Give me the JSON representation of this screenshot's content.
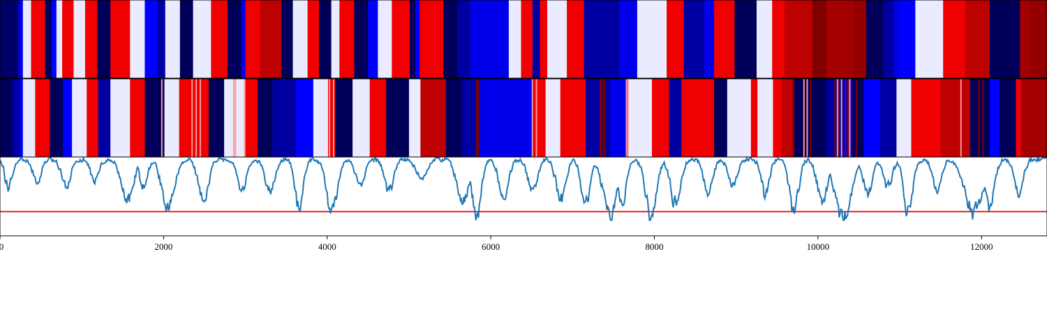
{
  "chart_data": [
    {
      "type": "heatmap",
      "name": "segmentation-a",
      "colormap": "seismic",
      "xlim": [
        0,
        12800
      ],
      "segments": [
        [
          0,
          210,
          0.04
        ],
        [
          210,
          230,
          0.12
        ],
        [
          230,
          280,
          0.22
        ],
        [
          280,
          380,
          0.48
        ],
        [
          380,
          550,
          0.78
        ],
        [
          550,
          630,
          0.02
        ],
        [
          630,
          690,
          0.25
        ],
        [
          690,
          760,
          0.48
        ],
        [
          760,
          900,
          0.78
        ],
        [
          900,
          1040,
          0.48
        ],
        [
          1040,
          1190,
          0.78
        ],
        [
          1190,
          1350,
          0.02
        ],
        [
          1350,
          1590,
          0.78
        ],
        [
          1590,
          1770,
          0.48
        ],
        [
          1770,
          1930,
          0.25
        ],
        [
          1930,
          2020,
          0.12
        ],
        [
          2020,
          2200,
          0.48
        ],
        [
          2200,
          2360,
          0.02
        ],
        [
          2360,
          2580,
          0.48
        ],
        [
          2580,
          2780,
          0.78
        ],
        [
          2780,
          2950,
          0.02
        ],
        [
          2950,
          3000,
          0.22
        ],
        [
          3000,
          3180,
          0.78
        ],
        [
          3180,
          3440,
          0.88
        ],
        [
          3440,
          3580,
          0.02
        ],
        [
          3580,
          3760,
          0.48
        ],
        [
          3760,
          3900,
          0.78
        ],
        [
          3900,
          4050,
          0.02
        ],
        [
          4050,
          4150,
          0.48
        ],
        [
          4150,
          4330,
          0.78
        ],
        [
          4330,
          4500,
          0.02
        ],
        [
          4500,
          4620,
          0.25
        ],
        [
          4620,
          4790,
          0.48
        ],
        [
          4790,
          5010,
          0.78
        ],
        [
          5010,
          5080,
          0.02
        ],
        [
          5080,
          5130,
          0.25
        ],
        [
          5130,
          5420,
          0.78
        ],
        [
          5420,
          5590,
          0.02
        ],
        [
          5590,
          5750,
          0.12
        ],
        [
          5750,
          6220,
          0.22
        ],
        [
          6220,
          6370,
          0.48
        ],
        [
          6370,
          6510,
          0.78
        ],
        [
          6510,
          6600,
          0.12
        ],
        [
          6600,
          6690,
          0.78
        ],
        [
          6690,
          6930,
          0.48
        ],
        [
          6930,
          7140,
          0.78
        ],
        [
          7140,
          7570,
          0.12
        ],
        [
          7570,
          7790,
          0.22
        ],
        [
          7790,
          8150,
          0.48
        ],
        [
          8150,
          8360,
          0.78
        ],
        [
          8360,
          8610,
          0.12
        ],
        [
          8610,
          8730,
          0.22
        ],
        [
          8730,
          8980,
          0.78
        ],
        [
          8980,
          9250,
          0.02
        ],
        [
          9250,
          9440,
          0.48
        ],
        [
          9440,
          9590,
          0.78
        ],
        [
          9590,
          9930,
          0.88
        ],
        [
          9930,
          10100,
          1.0
        ],
        [
          10100,
          10430,
          0.93
        ],
        [
          10430,
          10590,
          0.96
        ],
        [
          10590,
          10800,
          0.02
        ],
        [
          10800,
          10930,
          0.12
        ],
        [
          10930,
          11010,
          0.22
        ],
        [
          11010,
          11190,
          0.25
        ],
        [
          11190,
          11530,
          0.48
        ],
        [
          11530,
          11800,
          0.78
        ],
        [
          11800,
          12100,
          0.88
        ],
        [
          12100,
          12470,
          0.02
        ],
        [
          12470,
          12580,
          0.93
        ],
        [
          12580,
          12800,
          0.96
        ]
      ]
    },
    {
      "type": "heatmap",
      "name": "segmentation-b",
      "colormap": "seismic",
      "xlim": [
        0,
        12800
      ],
      "segments": [
        [
          0,
          150,
          0.02
        ],
        [
          150,
          230,
          0.12
        ],
        [
          230,
          280,
          0.22
        ],
        [
          280,
          430,
          0.48
        ],
        [
          430,
          610,
          0.78
        ],
        [
          610,
          770,
          0.02
        ],
        [
          770,
          880,
          0.25
        ],
        [
          880,
          1060,
          0.48
        ],
        [
          1060,
          1200,
          0.78
        ],
        [
          1200,
          1350,
          0.12
        ],
        [
          1350,
          1590,
          0.48
        ],
        [
          1590,
          1770,
          0.78
        ],
        [
          1770,
          2010,
          0.02
        ],
        [
          2010,
          2190,
          0.48
        ],
        [
          2190,
          2550,
          0.78
        ],
        [
          2550,
          2740,
          0.02
        ],
        [
          2740,
          2980,
          0.48
        ],
        [
          2980,
          3000,
          0.58
        ],
        [
          3000,
          3150,
          0.78
        ],
        [
          3150,
          3330,
          0.02
        ],
        [
          3330,
          3620,
          0.12
        ],
        [
          3620,
          3830,
          0.25
        ],
        [
          3830,
          4010,
          0.48
        ],
        [
          4010,
          4100,
          0.78
        ],
        [
          4100,
          4310,
          0.02
        ],
        [
          4310,
          4520,
          0.48
        ],
        [
          4520,
          4720,
          0.78
        ],
        [
          4720,
          5000,
          0.02
        ],
        [
          5000,
          5140,
          0.48
        ],
        [
          5140,
          5450,
          0.88
        ],
        [
          5450,
          5650,
          0.02
        ],
        [
          5650,
          5870,
          0.12
        ],
        [
          5870,
          6520,
          0.22
        ],
        [
          6520,
          6670,
          0.78
        ],
        [
          6670,
          6850,
          0.48
        ],
        [
          6850,
          7160,
          0.78
        ],
        [
          7160,
          7460,
          0.12
        ],
        [
          7460,
          7680,
          0.22
        ],
        [
          7680,
          7970,
          0.48
        ],
        [
          7970,
          8180,
          0.78
        ],
        [
          8180,
          8330,
          0.12
        ],
        [
          8330,
          8730,
          0.78
        ],
        [
          8730,
          8890,
          0.02
        ],
        [
          8890,
          9180,
          0.48
        ],
        [
          9180,
          9260,
          0.78
        ],
        [
          9260,
          9450,
          0.48
        ],
        [
          9450,
          9550,
          0.78
        ],
        [
          9550,
          9710,
          0.88
        ],
        [
          9710,
          10100,
          0.02
        ],
        [
          10100,
          10310,
          0.12
        ],
        [
          10310,
          10420,
          0.22
        ],
        [
          10420,
          10560,
          0.02
        ],
        [
          10560,
          10760,
          0.25
        ],
        [
          10760,
          10960,
          0.12
        ],
        [
          10960,
          11140,
          0.48
        ],
        [
          11140,
          11500,
          0.78
        ],
        [
          11500,
          11860,
          0.88
        ],
        [
          11860,
          12100,
          0.02
        ],
        [
          12100,
          12220,
          0.25
        ],
        [
          12220,
          12420,
          0.02
        ],
        [
          12420,
          12480,
          0.78
        ],
        [
          12480,
          12800,
          0.93
        ]
      ],
      "marks": [
        [
          1970,
          0.6
        ],
        [
          2340,
          0.6
        ],
        [
          2390,
          0.6
        ],
        [
          2440,
          0.6
        ],
        [
          2850,
          0.6
        ],
        [
          2870,
          0.6
        ],
        [
          4020,
          0.6
        ],
        [
          4070,
          0.6
        ],
        [
          5820,
          1.0
        ],
        [
          5840,
          1.0
        ],
        [
          6500,
          0.6
        ],
        [
          6550,
          0.6
        ],
        [
          7330,
          1.0
        ],
        [
          7350,
          1.0
        ],
        [
          7380,
          1.0
        ],
        [
          7650,
          0.6
        ],
        [
          7670,
          0.6
        ],
        [
          9690,
          1.0
        ],
        [
          9820,
          0.6
        ],
        [
          9860,
          0.6
        ],
        [
          9900,
          1.0
        ],
        [
          10200,
          1.0
        ],
        [
          10230,
          0.6
        ],
        [
          10250,
          1.0
        ],
        [
          10280,
          0.6
        ],
        [
          10330,
          1.0
        ],
        [
          10360,
          1.0
        ],
        [
          10380,
          0.6
        ],
        [
          10460,
          1.0
        ],
        [
          11740,
          0.6
        ],
        [
          11960,
          1.0
        ],
        [
          12010,
          1.0
        ]
      ]
    },
    {
      "type": "line",
      "name": "signal",
      "xlim": [
        0,
        12800
      ],
      "ylim": [
        0,
        1.0
      ],
      "threshold": 0.31,
      "threshold_color": "#e8141a",
      "line_color": "#1f77b4",
      "xticks": [
        0,
        2000,
        4000,
        6000,
        8000,
        10000,
        12000
      ],
      "xtick_labels": [
        "0",
        "2000",
        "4000",
        "6000",
        "8000",
        "10000",
        "12000"
      ],
      "dips": [
        [
          100,
          0.62,
          80
        ],
        [
          450,
          0.7,
          90
        ],
        [
          800,
          0.62,
          90
        ],
        [
          1150,
          0.7,
          80
        ],
        [
          1550,
          0.45,
          120
        ],
        [
          1750,
          0.6,
          80
        ],
        [
          2050,
          0.37,
          130
        ],
        [
          2480,
          0.4,
          100
        ],
        [
          2950,
          0.55,
          90
        ],
        [
          3300,
          0.58,
          100
        ],
        [
          3650,
          0.33,
          80
        ],
        [
          4050,
          0.35,
          110
        ],
        [
          4400,
          0.66,
          90
        ],
        [
          4750,
          0.6,
          100
        ],
        [
          5150,
          0.72,
          110
        ],
        [
          5650,
          0.45,
          120
        ],
        [
          5820,
          0.22,
          90
        ],
        [
          6150,
          0.5,
          100
        ],
        [
          6500,
          0.6,
          100
        ],
        [
          6850,
          0.45,
          100
        ],
        [
          7150,
          0.38,
          90
        ],
        [
          7450,
          0.28,
          140
        ],
        [
          7600,
          0.4,
          80
        ],
        [
          7950,
          0.25,
          110
        ],
        [
          8250,
          0.4,
          100
        ],
        [
          8650,
          0.55,
          90
        ],
        [
          8950,
          0.62,
          90
        ],
        [
          9350,
          0.52,
          80
        ],
        [
          9700,
          0.28,
          90
        ],
        [
          10050,
          0.42,
          110
        ],
        [
          10300,
          0.2,
          160
        ],
        [
          10600,
          0.55,
          90
        ],
        [
          10850,
          0.6,
          90
        ],
        [
          11100,
          0.3,
          90
        ],
        [
          11450,
          0.6,
          90
        ],
        [
          11900,
          0.3,
          180
        ],
        [
          12100,
          0.38,
          90
        ],
        [
          12450,
          0.55,
          90
        ]
      ]
    }
  ]
}
